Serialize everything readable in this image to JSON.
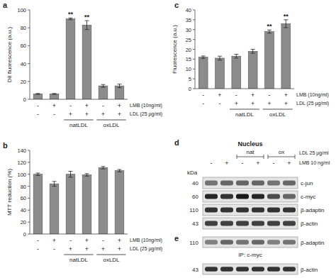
{
  "chart_data": [
    {
      "panel": "a",
      "type": "bar",
      "y_label": "DiI fluorescence (a.u.)",
      "categories": [
        null,
        null,
        null,
        null,
        null,
        null
      ],
      "values": [
        6,
        6,
        90,
        83,
        15,
        15
      ],
      "errors": [
        0.5,
        0.5,
        1,
        5,
        1.5,
        2
      ],
      "significance": [
        null,
        null,
        "**",
        "**",
        null,
        null
      ],
      "color": "#8c8c8c",
      "ylim": [
        0,
        100
      ],
      "yticks": [
        0,
        20,
        40,
        60,
        80,
        100
      ],
      "conditions": [
        {
          "label": "LMB (10ng/ml)",
          "values": [
            "-",
            "+",
            "-",
            "+",
            "-",
            "+"
          ]
        },
        {
          "label": "LDL (25 µg/ml)",
          "values": [
            "-",
            "-",
            "+",
            "+",
            "+",
            "+"
          ]
        }
      ],
      "groups": [
        {
          "label": "natLDL",
          "from": 2,
          "to": 3
        },
        {
          "label": "oxLDL",
          "from": 4,
          "to": 5
        }
      ]
    },
    {
      "panel": "b",
      "type": "bar",
      "y_label": "MTT reduction (%)",
      "categories": [
        null,
        null,
        null,
        null,
        null,
        null
      ],
      "values": [
        100,
        84,
        100,
        99,
        111,
        106
      ],
      "errors": [
        2,
        4,
        5,
        2,
        2,
        2
      ],
      "significance": [
        null,
        null,
        null,
        null,
        null,
        null
      ],
      "color": "#8c8c8c",
      "ylim": [
        0,
        140
      ],
      "yticks": [
        0,
        20,
        40,
        60,
        80,
        100,
        120,
        140
      ],
      "conditions": [
        {
          "label": "LMB (10ng/ml)",
          "values": [
            "-",
            "+",
            "-",
            "+",
            "-",
            "+"
          ]
        },
        {
          "label": "LDL (25 µg/ml)",
          "values": [
            "-",
            "-",
            "+",
            "+",
            "+",
            "+"
          ]
        }
      ],
      "groups": [
        {
          "label": "natLDL",
          "from": 2,
          "to": 3
        },
        {
          "label": "oxLDL",
          "from": 4,
          "to": 5
        }
      ]
    },
    {
      "panel": "c",
      "type": "bar",
      "y_label": "Fluorescence (a.u.)",
      "categories": [
        null,
        null,
        null,
        null,
        null,
        null
      ],
      "values": [
        16,
        15.5,
        16.5,
        19,
        29,
        33
      ],
      "errors": [
        0.6,
        1,
        1,
        1,
        0.8,
        2
      ],
      "significance": [
        null,
        null,
        null,
        null,
        "**",
        "**"
      ],
      "color": "#8c8c8c",
      "ylim": [
        0,
        40
      ],
      "yticks": [
        0,
        5,
        10,
        15,
        20,
        25,
        30,
        35,
        40
      ],
      "conditions": [
        {
          "label": "LMB (10ng/ml)",
          "values": [
            "-",
            "+",
            "-",
            "+",
            "-",
            "+"
          ]
        },
        {
          "label": "LDL (25 µg/ml)",
          "values": [
            "-",
            "-",
            "+",
            "+",
            "+",
            "+"
          ]
        }
      ],
      "groups": [
        {
          "label": "natLDL",
          "from": 2,
          "to": 3
        },
        {
          "label": "oxLDL",
          "from": 4,
          "to": 5
        }
      ]
    }
  ],
  "blots": [
    {
      "panel": "d",
      "header": "Nucleus",
      "marker_unit": "kDa",
      "groups": [
        {
          "label": "nat",
          "from": 2,
          "to": 3
        },
        {
          "label": "ox",
          "from": 4,
          "to": 5
        }
      ],
      "treatments": [
        {
          "label": "LDL 25 µg/ml"
        },
        {
          "label": "LMB 10 ng/ml",
          "values": [
            "-",
            "+",
            "-",
            "+",
            "-",
            "+"
          ]
        }
      ],
      "rows": [
        {
          "marker": 40,
          "label": "c-jun",
          "intensities": [
            0.55,
            0.6,
            0.6,
            0.6,
            0.55,
            0.6
          ]
        },
        {
          "marker": 60,
          "label": "c-myc",
          "intensities": [
            0.85,
            0.8,
            0.9,
            0.85,
            0.7,
            0.6
          ]
        },
        {
          "marker": 110,
          "label": "β-adaptin",
          "intensities": [
            0.8,
            0.8,
            0.8,
            0.8,
            0.8,
            0.8
          ]
        },
        {
          "marker": 43,
          "label": "β-actin",
          "intensities": [
            0.75,
            0.75,
            0.75,
            0.75,
            0.75,
            0.75
          ]
        }
      ]
    },
    {
      "panel": "e",
      "note": "IP: c-myc",
      "rows": [
        {
          "marker": 110,
          "label": "β-adaptin",
          "intensities": [
            0.5,
            0.6,
            0.55,
            0.6,
            0.5,
            0.55
          ]
        },
        {
          "marker": 43,
          "label": "β-actin",
          "intensities": [
            0.8,
            0.8,
            0.8,
            0.8,
            0.8,
            0.8
          ]
        }
      ]
    }
  ]
}
